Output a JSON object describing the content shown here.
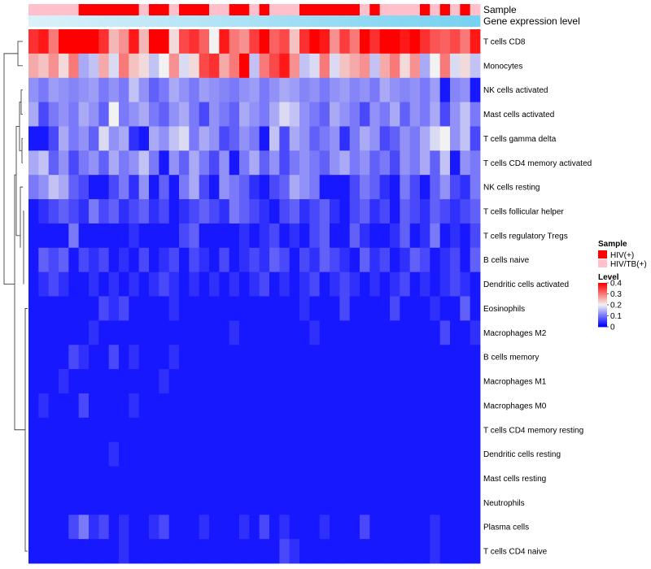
{
  "chart_data": {
    "type": "heatmap",
    "title": "",
    "annotations": [
      {
        "name": "Sample",
        "label": "Sample"
      },
      {
        "name": "Level",
        "label": "Gene expression level"
      }
    ],
    "rows": [
      "T cells CD8",
      "Monocytes",
      "NK cells activated",
      "Mast cells activated",
      "T cells gamma delta",
      "T cells CD4 memory activated",
      "NK cells resting",
      "T cells follicular helper",
      "T cells regulatory  Tregs",
      "B cells naive",
      "Dendritic cells activated",
      "Eosinophils",
      "Macrophages M2",
      "B cells memory",
      "Macrophages M1",
      "Macrophages M0",
      "T cells CD4 memory resting",
      "Dendritic cells resting",
      "Mast cells resting",
      "Neutrophils",
      "Plasma cells",
      "T cells CD4 naive"
    ],
    "sample_groups": [
      "HIV/TB(+)",
      "HIV/TB(+)",
      "HIV/TB(+)",
      "HIV/TB(+)",
      "HIV/TB(+)",
      "HIV(+)",
      "HIV(+)",
      "HIV(+)",
      "HIV(+)",
      "HIV(+)",
      "HIV(+)",
      "HIV/TB(+)",
      "HIV(+)",
      "HIV(+)",
      "HIV/TB(+)",
      "HIV(+)",
      "HIV(+)",
      "HIV(+)",
      "HIV/TB(+)",
      "HIV/TB(+)",
      "HIV(+)",
      "HIV(+)",
      "HIV/TB(+)",
      "HIV(+)",
      "HIV/TB(+)",
      "HIV/TB(+)",
      "HIV/TB(+)",
      "HIV(+)",
      "HIV(+)",
      "HIV(+)",
      "HIV(+)",
      "HIV(+)",
      "HIV(+)",
      "HIV/TB(+)",
      "HIV(+)",
      "HIV/TB(+)",
      "HIV/TB(+)",
      "HIV/TB(+)",
      "HIV/TB(+)",
      "HIV(+)",
      "HIV/TB(+)",
      "HIV(+)",
      "HIV/TB(+)",
      "HIV(+)",
      "HIV/TB(+)"
    ],
    "expression_level": [
      0.05,
      0.07,
      0.09,
      0.11,
      0.13,
      0.15,
      0.17,
      0.19,
      0.21,
      0.23,
      0.25,
      0.27,
      0.29,
      0.31,
      0.33,
      0.35,
      0.37,
      0.39,
      0.41,
      0.43,
      0.45,
      0.47,
      0.49,
      0.51,
      0.53,
      0.55,
      0.57,
      0.59,
      0.61,
      0.63,
      0.65,
      0.67,
      0.69,
      0.71,
      0.73,
      0.75,
      0.77,
      0.79,
      0.81,
      0.83,
      0.85,
      0.87,
      0.89,
      0.91,
      0.93
    ],
    "values": [
      [
        0.36,
        0.38,
        0.3,
        0.42,
        0.4,
        0.4,
        0.45,
        0.36,
        0.25,
        0.28,
        0.38,
        0.25,
        0.42,
        0.44,
        0.22,
        0.34,
        0.36,
        0.32,
        0.2,
        0.38,
        0.3,
        0.28,
        0.35,
        0.4,
        0.32,
        0.34,
        0.24,
        0.36,
        0.4,
        0.38,
        0.28,
        0.35,
        0.3,
        0.4,
        0.36,
        0.42,
        0.4,
        0.38,
        0.44,
        0.36,
        0.33,
        0.32,
        0.34,
        0.3,
        0.38
      ],
      [
        0.26,
        0.24,
        0.28,
        0.22,
        0.3,
        0.14,
        0.16,
        0.26,
        0.18,
        0.3,
        0.24,
        0.22,
        0.16,
        0.2,
        0.28,
        0.18,
        0.22,
        0.34,
        0.36,
        0.26,
        0.3,
        0.4,
        0.16,
        0.3,
        0.34,
        0.38,
        0.28,
        0.16,
        0.18,
        0.3,
        0.18,
        0.24,
        0.26,
        0.28,
        0.16,
        0.26,
        0.3,
        0.22,
        0.28,
        0.14,
        0.2,
        0.3,
        0.18,
        0.22,
        0.16
      ],
      [
        0.12,
        0.1,
        0.13,
        0.12,
        0.11,
        0.12,
        0.13,
        0.1,
        0.12,
        0.1,
        0.16,
        0.12,
        0.08,
        0.1,
        0.14,
        0.12,
        0.1,
        0.13,
        0.12,
        0.11,
        0.1,
        0.12,
        0.13,
        0.1,
        0.12,
        0.14,
        0.13,
        0.11,
        0.12,
        0.1,
        0.12,
        0.13,
        0.11,
        0.12,
        0.1,
        0.14,
        0.12,
        0.11,
        0.12,
        0.1,
        0.13,
        0.02,
        0.11,
        0.12,
        0.02
      ],
      [
        0.14,
        0.06,
        0.1,
        0.12,
        0.1,
        0.14,
        0.12,
        0.08,
        0.2,
        0.1,
        0.12,
        0.14,
        0.1,
        0.08,
        0.12,
        0.14,
        0.1,
        0.06,
        0.12,
        0.1,
        0.08,
        0.14,
        0.12,
        0.1,
        0.14,
        0.18,
        0.16,
        0.12,
        0.1,
        0.08,
        0.14,
        0.12,
        0.1,
        0.06,
        0.12,
        0.1,
        0.14,
        0.08,
        0.12,
        0.1,
        0.14,
        0.06,
        0.12,
        0.16,
        0.1
      ],
      [
        0.02,
        0.02,
        0.06,
        0.14,
        0.1,
        0.12,
        0.08,
        0.18,
        0.12,
        0.14,
        0.04,
        0.02,
        0.14,
        0.12,
        0.16,
        0.18,
        0.1,
        0.14,
        0.12,
        0.06,
        0.08,
        0.12,
        0.1,
        0.02,
        0.16,
        0.06,
        0.14,
        0.12,
        0.08,
        0.1,
        0.12,
        0.04,
        0.1,
        0.14,
        0.12,
        0.06,
        0.08,
        0.12,
        0.1,
        0.14,
        0.18,
        0.2,
        0.12,
        0.16,
        0.06
      ],
      [
        0.14,
        0.16,
        0.08,
        0.12,
        0.06,
        0.1,
        0.12,
        0.08,
        0.14,
        0.1,
        0.12,
        0.16,
        0.1,
        0.02,
        0.12,
        0.08,
        0.14,
        0.1,
        0.06,
        0.12,
        0.02,
        0.1,
        0.14,
        0.08,
        0.12,
        0.06,
        0.1,
        0.12,
        0.1,
        0.08,
        0.12,
        0.14,
        0.1,
        0.12,
        0.08,
        0.1,
        0.06,
        0.12,
        0.1,
        0.14,
        0.08,
        0.16,
        0.02,
        0.12,
        0.1
      ],
      [
        0.1,
        0.12,
        0.16,
        0.14,
        0.08,
        0.06,
        0.02,
        0.02,
        0.06,
        0.1,
        0.04,
        0.12,
        0.02,
        0.08,
        0.02,
        0.1,
        0.14,
        0.06,
        0.02,
        0.12,
        0.1,
        0.08,
        0.04,
        0.02,
        0.06,
        0.08,
        0.14,
        0.12,
        0.1,
        0.02,
        0.02,
        0.02,
        0.06,
        0.1,
        0.08,
        0.04,
        0.02,
        0.1,
        0.06,
        0.02,
        0.08,
        0.12,
        0.06,
        0.04,
        0.1
      ],
      [
        0.02,
        0.04,
        0.06,
        0.08,
        0.06,
        0.04,
        0.1,
        0.06,
        0.08,
        0.04,
        0.06,
        0.08,
        0.04,
        0.06,
        0.02,
        0.04,
        0.06,
        0.08,
        0.06,
        0.04,
        0.1,
        0.08,
        0.06,
        0.04,
        0.02,
        0.06,
        0.08,
        0.04,
        0.06,
        0.08,
        0.04,
        0.02,
        0.06,
        0.08,
        0.04,
        0.06,
        0.02,
        0.08,
        0.06,
        0.04,
        0.08,
        0.06,
        0.04,
        0.06,
        0.08
      ],
      [
        0.02,
        0.02,
        0.02,
        0.02,
        0.1,
        0.02,
        0.02,
        0.02,
        0.02,
        0.02,
        0.04,
        0.02,
        0.02,
        0.02,
        0.02,
        0.06,
        0.08,
        0.02,
        0.02,
        0.02,
        0.02,
        0.04,
        0.02,
        0.04,
        0.06,
        0.02,
        0.04,
        0.02,
        0.06,
        0.08,
        0.02,
        0.02,
        0.08,
        0.04,
        0.02,
        0.02,
        0.04,
        0.08,
        0.02,
        0.04,
        0.1,
        0.02,
        0.04,
        0.02,
        0.06
      ],
      [
        0.02,
        0.08,
        0.06,
        0.08,
        0.02,
        0.06,
        0.04,
        0.06,
        0.02,
        0.04,
        0.02,
        0.06,
        0.02,
        0.04,
        0.06,
        0.02,
        0.06,
        0.04,
        0.02,
        0.06,
        0.02,
        0.04,
        0.06,
        0.04,
        0.08,
        0.06,
        0.02,
        0.06,
        0.04,
        0.08,
        0.06,
        0.04,
        0.02,
        0.08,
        0.04,
        0.06,
        0.02,
        0.04,
        0.08,
        0.06,
        0.02,
        0.04,
        0.06,
        0.02,
        0.08
      ],
      [
        0.02,
        0.04,
        0.06,
        0.04,
        0.02,
        0.02,
        0.04,
        0.02,
        0.04,
        0.02,
        0.04,
        0.02,
        0.04,
        0.06,
        0.04,
        0.02,
        0.04,
        0.02,
        0.04,
        0.02,
        0.04,
        0.02,
        0.04,
        0.06,
        0.02,
        0.04,
        0.02,
        0.04,
        0.06,
        0.02,
        0.04,
        0.06,
        0.04,
        0.02,
        0.04,
        0.02,
        0.04,
        0.06,
        0.02,
        0.04,
        0.02,
        0.04,
        0.06,
        0.04,
        0.02
      ],
      [
        0.02,
        0.02,
        0.02,
        0.02,
        0.02,
        0.02,
        0.02,
        0.06,
        0.04,
        0.06,
        0.02,
        0.02,
        0.02,
        0.02,
        0.04,
        0.02,
        0.02,
        0.02,
        0.02,
        0.02,
        0.02,
        0.02,
        0.02,
        0.02,
        0.02,
        0.02,
        0.02,
        0.04,
        0.02,
        0.02,
        0.02,
        0.06,
        0.02,
        0.02,
        0.02,
        0.02,
        0.06,
        0.02,
        0.02,
        0.02,
        0.04,
        0.02,
        0.02,
        0.08,
        0.02
      ],
      [
        0.02,
        0.02,
        0.02,
        0.02,
        0.02,
        0.02,
        0.04,
        0.02,
        0.02,
        0.02,
        0.02,
        0.02,
        0.02,
        0.02,
        0.02,
        0.02,
        0.02,
        0.02,
        0.02,
        0.02,
        0.04,
        0.02,
        0.02,
        0.02,
        0.02,
        0.02,
        0.02,
        0.02,
        0.04,
        0.02,
        0.02,
        0.02,
        0.02,
        0.02,
        0.02,
        0.02,
        0.02,
        0.02,
        0.02,
        0.02,
        0.02,
        0.06,
        0.02,
        0.02,
        0.04
      ],
      [
        0.02,
        0.02,
        0.02,
        0.02,
        0.06,
        0.04,
        0.02,
        0.02,
        0.06,
        0.02,
        0.04,
        0.02,
        0.02,
        0.02,
        0.04,
        0.02,
        0.02,
        0.02,
        0.02,
        0.02,
        0.02,
        0.02,
        0.02,
        0.02,
        0.02,
        0.02,
        0.02,
        0.02,
        0.02,
        0.02,
        0.02,
        0.02,
        0.02,
        0.02,
        0.02,
        0.02,
        0.02,
        0.02,
        0.02,
        0.02,
        0.02,
        0.02,
        0.02,
        0.02,
        0.02
      ],
      [
        0.02,
        0.02,
        0.02,
        0.04,
        0.02,
        0.02,
        0.02,
        0.02,
        0.02,
        0.02,
        0.02,
        0.02,
        0.02,
        0.04,
        0.02,
        0.02,
        0.02,
        0.02,
        0.02,
        0.02,
        0.02,
        0.02,
        0.02,
        0.02,
        0.02,
        0.02,
        0.02,
        0.02,
        0.02,
        0.02,
        0.02,
        0.02,
        0.02,
        0.02,
        0.02,
        0.02,
        0.02,
        0.02,
        0.02,
        0.02,
        0.02,
        0.02,
        0.02,
        0.02,
        0.02
      ],
      [
        0.02,
        0.04,
        0.02,
        0.02,
        0.02,
        0.06,
        0.02,
        0.02,
        0.02,
        0.02,
        0.04,
        0.02,
        0.02,
        0.02,
        0.02,
        0.02,
        0.02,
        0.02,
        0.02,
        0.02,
        0.02,
        0.02,
        0.02,
        0.02,
        0.02,
        0.02,
        0.02,
        0.02,
        0.02,
        0.02,
        0.02,
        0.02,
        0.02,
        0.02,
        0.02,
        0.02,
        0.02,
        0.02,
        0.02,
        0.02,
        0.02,
        0.02,
        0.02,
        0.02,
        0.02
      ],
      [
        0.02,
        0.02,
        0.02,
        0.02,
        0.02,
        0.02,
        0.02,
        0.02,
        0.02,
        0.02,
        0.02,
        0.02,
        0.02,
        0.02,
        0.02,
        0.02,
        0.02,
        0.02,
        0.02,
        0.02,
        0.02,
        0.02,
        0.02,
        0.02,
        0.02,
        0.02,
        0.02,
        0.02,
        0.02,
        0.02,
        0.02,
        0.02,
        0.02,
        0.02,
        0.02,
        0.02,
        0.02,
        0.02,
        0.02,
        0.02,
        0.02,
        0.02,
        0.02,
        0.02,
        0.02
      ],
      [
        0.02,
        0.02,
        0.02,
        0.02,
        0.02,
        0.02,
        0.02,
        0.02,
        0.04,
        0.02,
        0.02,
        0.02,
        0.02,
        0.02,
        0.02,
        0.02,
        0.02,
        0.02,
        0.02,
        0.02,
        0.02,
        0.02,
        0.02,
        0.02,
        0.02,
        0.02,
        0.02,
        0.02,
        0.02,
        0.02,
        0.02,
        0.02,
        0.02,
        0.02,
        0.02,
        0.02,
        0.02,
        0.02,
        0.02,
        0.02,
        0.02,
        0.02,
        0.02,
        0.02,
        0.02
      ],
      [
        0.02,
        0.02,
        0.02,
        0.02,
        0.02,
        0.02,
        0.02,
        0.02,
        0.02,
        0.02,
        0.02,
        0.02,
        0.02,
        0.02,
        0.02,
        0.02,
        0.02,
        0.02,
        0.02,
        0.02,
        0.02,
        0.02,
        0.02,
        0.02,
        0.02,
        0.02,
        0.02,
        0.02,
        0.02,
        0.02,
        0.02,
        0.02,
        0.02,
        0.02,
        0.02,
        0.02,
        0.02,
        0.02,
        0.02,
        0.02,
        0.02,
        0.02,
        0.02,
        0.02,
        0.02
      ],
      [
        0.02,
        0.02,
        0.02,
        0.02,
        0.02,
        0.02,
        0.02,
        0.02,
        0.02,
        0.02,
        0.02,
        0.02,
        0.02,
        0.02,
        0.02,
        0.02,
        0.02,
        0.02,
        0.02,
        0.02,
        0.02,
        0.02,
        0.02,
        0.02,
        0.02,
        0.02,
        0.02,
        0.02,
        0.02,
        0.02,
        0.02,
        0.02,
        0.02,
        0.02,
        0.02,
        0.02,
        0.02,
        0.02,
        0.02,
        0.02,
        0.02,
        0.02,
        0.02,
        0.02,
        0.02
      ],
      [
        0.02,
        0.02,
        0.02,
        0.02,
        0.06,
        0.1,
        0.04,
        0.06,
        0.02,
        0.04,
        0.02,
        0.02,
        0.04,
        0.06,
        0.02,
        0.02,
        0.02,
        0.04,
        0.02,
        0.02,
        0.02,
        0.04,
        0.02,
        0.06,
        0.02,
        0.04,
        0.02,
        0.02,
        0.02,
        0.04,
        0.02,
        0.02,
        0.02,
        0.06,
        0.02,
        0.02,
        0.02,
        0.02,
        0.02,
        0.02,
        0.04,
        0.02,
        0.02,
        0.02,
        0.02
      ],
      [
        0.02,
        0.02,
        0.02,
        0.02,
        0.02,
        0.02,
        0.02,
        0.02,
        0.02,
        0.04,
        0.02,
        0.02,
        0.02,
        0.02,
        0.02,
        0.02,
        0.02,
        0.02,
        0.02,
        0.02,
        0.02,
        0.02,
        0.02,
        0.02,
        0.02,
        0.06,
        0.04,
        0.02,
        0.02,
        0.02,
        0.02,
        0.02,
        0.02,
        0.02,
        0.02,
        0.02,
        0.02,
        0.02,
        0.02,
        0.02,
        0.04,
        0.02,
        0.02,
        0.02,
        0.02
      ]
    ],
    "legend": {
      "sample": {
        "title": "Sample",
        "entries": [
          {
            "label": "HIV(+)",
            "color": "#FF0000"
          },
          {
            "label": "HIV/TB(+)",
            "color": "#FFC0CB"
          }
        ]
      },
      "level": {
        "title": "Level",
        "ticks": [
          "0.4",
          "0.3",
          "0.2",
          "0.1",
          "0"
        ],
        "tick_values": [
          0.4,
          0.3,
          0.2,
          0.1,
          0
        ],
        "range": [
          0,
          0.4
        ]
      },
      "placement": "right"
    },
    "colors": {
      "low": "#0000FF",
      "mid": "#F2F2F2",
      "high": "#FF0000",
      "mid_value": 0.2,
      "level_low": "#E0F3FB",
      "level_high": "#6ECFF0",
      "dendrogram": "#444444"
    }
  }
}
